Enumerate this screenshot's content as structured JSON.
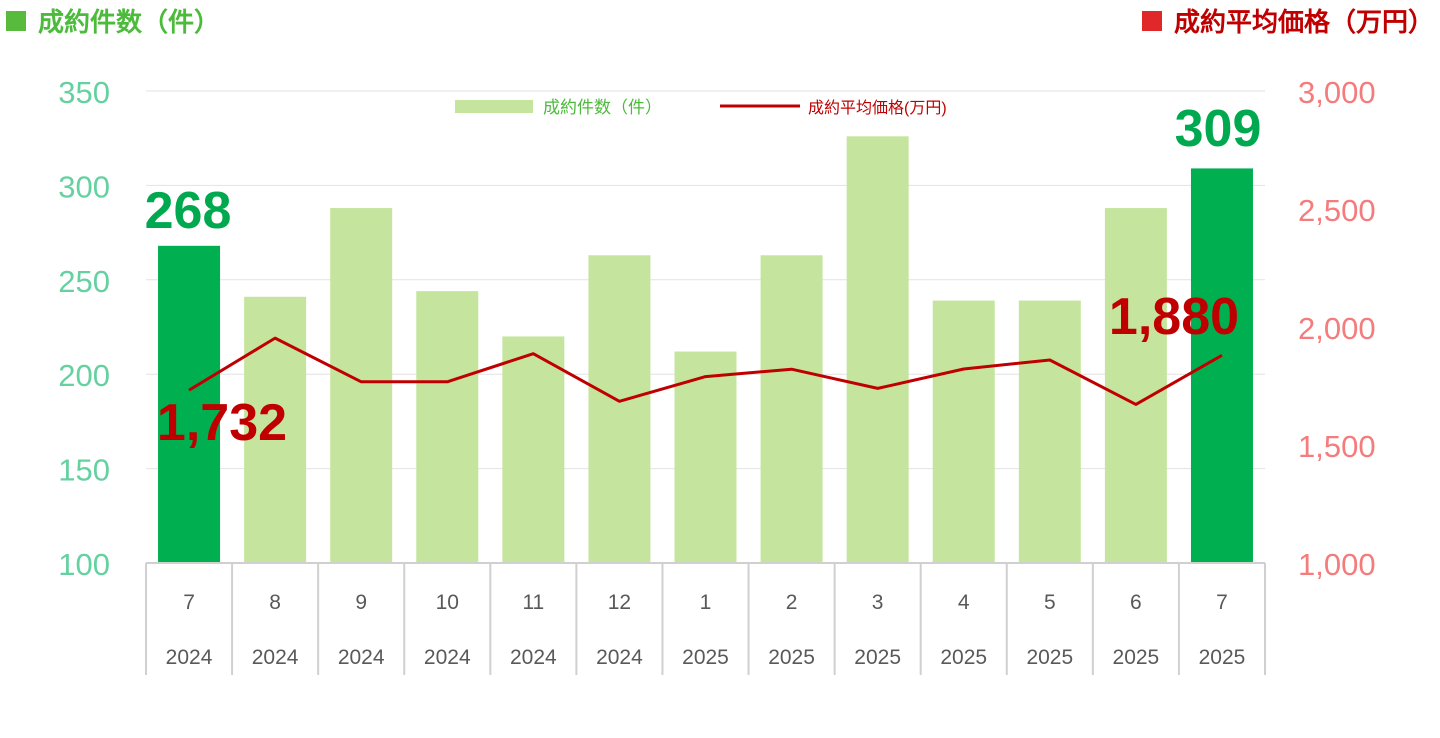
{
  "titles": {
    "left": "成約件数（件）",
    "right": "成約平均価格（万円）"
  },
  "colors": {
    "bar_normal": "#C5E59E",
    "bar_highlight": "#00B050",
    "line": "#C00000",
    "left_axis_text": "#66D1A0",
    "right_axis_text": "#F47C7C",
    "highlight_count_label": "#00A94F",
    "highlight_price_label": "#C00000",
    "category_text": "#595959",
    "grid": "#E2E2E2"
  },
  "chart_data": {
    "type": "bar",
    "categories": [
      {
        "month": "7",
        "year": "2024"
      },
      {
        "month": "8",
        "year": "2024"
      },
      {
        "month": "9",
        "year": "2024"
      },
      {
        "month": "10",
        "year": "2024"
      },
      {
        "month": "11",
        "year": "2024"
      },
      {
        "month": "12",
        "year": "2024"
      },
      {
        "month": "1",
        "year": "2025"
      },
      {
        "month": "2",
        "year": "2025"
      },
      {
        "month": "3",
        "year": "2025"
      },
      {
        "month": "4",
        "year": "2025"
      },
      {
        "month": "5",
        "year": "2025"
      },
      {
        "month": "6",
        "year": "2025"
      },
      {
        "month": "7",
        "year": "2025"
      }
    ],
    "series": [
      {
        "name": "成約件数（件）",
        "type": "bar",
        "axis": "left",
        "values": [
          268,
          241,
          288,
          244,
          220,
          263,
          212,
          263,
          326,
          239,
          239,
          288,
          309
        ],
        "highlight_indices": [
          0,
          12
        ]
      },
      {
        "name": "成約平均価格(万円)",
        "type": "line",
        "axis": "right",
        "values": [
          1732,
          1953,
          1768,
          1768,
          1887,
          1685,
          1790,
          1821,
          1740,
          1822,
          1860,
          1672,
          1880
        ]
      }
    ],
    "left_axis": {
      "ylim": [
        100,
        350
      ],
      "ticks": [
        "100",
        "150",
        "200",
        "250",
        "300",
        "350"
      ]
    },
    "right_axis": {
      "ylim": [
        1000,
        3000
      ],
      "ticks": [
        "1,000",
        "1,500",
        "2,000",
        "2,500",
        "3,000"
      ]
    },
    "annotations": {
      "first_count": "268",
      "last_count": "309",
      "first_price": "1,732",
      "last_price": "1,880"
    },
    "legend": {
      "position": "top-center"
    }
  }
}
